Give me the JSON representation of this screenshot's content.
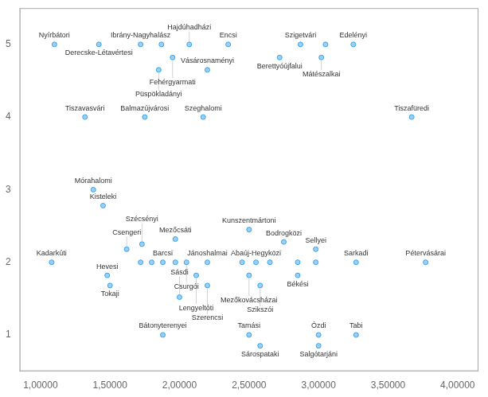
{
  "chart_data": {
    "type": "scatter",
    "x": [
      1.1,
      1.42,
      1.72,
      1.87,
      1.95,
      2.07,
      1.85,
      2.2,
      2.35,
      2.72,
      2.87,
      3.05,
      3.02,
      3.25,
      1.32,
      1.75,
      2.17,
      3.67,
      1.38,
      1.45,
      1.62,
      1.72,
      1.8,
      1.08,
      1.48,
      1.5,
      1.73,
      1.97,
      1.88,
      1.97,
      2.05,
      2.2,
      2.12,
      2.2,
      2.0,
      2.5,
      2.55,
      2.45,
      2.65,
      2.5,
      2.58,
      2.75,
      2.85,
      2.85,
      2.98,
      2.98,
      3.27,
      3.77,
      1.88,
      2.5,
      2.58,
      3.0,
      3.0,
      3.27
    ],
    "values": [
      5.0,
      5.0,
      5.0,
      5.0,
      4.82,
      5.0,
      4.65,
      4.65,
      5.0,
      4.82,
      5.0,
      5.0,
      4.82,
      5.0,
      4.0,
      4.0,
      4.0,
      4.0,
      3.0,
      2.78,
      2.18,
      2.0,
      2.0,
      2.0,
      1.82,
      1.68,
      2.25,
      2.32,
      2.0,
      2.0,
      2.0,
      2.0,
      1.82,
      1.68,
      1.52,
      2.45,
      2.0,
      2.0,
      2.0,
      1.82,
      1.68,
      2.28,
      2.0,
      1.82,
      2.18,
      2.0,
      2.0,
      2.0,
      1.0,
      1.0,
      0.85,
      1.0,
      0.85,
      1.0
    ],
    "annotations": [
      "Nyírbátori",
      "Derecske-Létavértesi",
      "Ibrány-Nagyhalász",
      null,
      "Fehérgyarmati",
      "Hajdúhadházi",
      "Püspökladányi",
      "Vásárosnaményi",
      "Encsi",
      "Berettyóújfalui",
      "Szigetvári",
      null,
      "Mátészalkai",
      "Edelényi",
      "Tiszavasvári",
      "Balmazújvárosi",
      "Szeghalomi",
      "Tiszafüredi",
      "Mórahalomi",
      "Kisteleki",
      "Csengeri",
      null,
      null,
      "Kadarkúti",
      "Hevesi",
      "Tokaji",
      "Szécsényi",
      "Mezőcsáti",
      "Barcsi",
      null,
      "Csurgói",
      "Jánoshalmai",
      "Lengyeltóti",
      "Szerencsi",
      "Sásdi",
      "Kunszentmártoni",
      "Abaúj-Hegyközi",
      null,
      null,
      "Mezőkovácsházai",
      "Szikszói",
      "Bodrogközi",
      null,
      "Békési",
      "Sellyei",
      null,
      "Sarkadi",
      "Pétervásárai",
      "Bátonyterenyei",
      "Tamási",
      "Sárospataki",
      "Ózdi",
      "Salgótarjáni",
      "Tabi"
    ],
    "xlim": [
      0.85,
      4.15
    ],
    "ylim": [
      0.5,
      5.5
    ],
    "xticks": [
      {
        "value": 1.0,
        "label": "1,00000"
      },
      {
        "value": 1.5,
        "label": "1,50000"
      },
      {
        "value": 2.0,
        "label": "2,00000"
      },
      {
        "value": 2.5,
        "label": "2,50000"
      },
      {
        "value": 3.0,
        "label": "3,00000"
      },
      {
        "value": 3.5,
        "label": "3,50000"
      },
      {
        "value": 4.0,
        "label": "4,00000"
      }
    ],
    "yticks": [
      1,
      2,
      3,
      4,
      5
    ],
    "grid": false
  }
}
